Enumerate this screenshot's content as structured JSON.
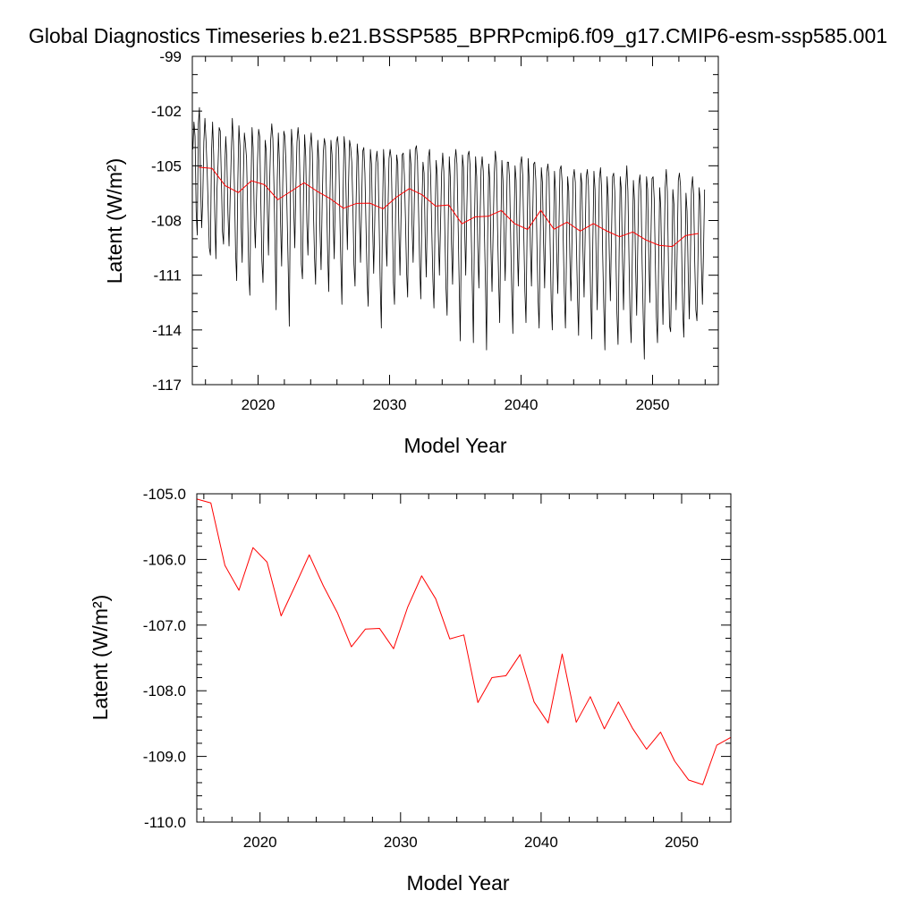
{
  "figure": {
    "title": "Global Diagnostics Timeseries b.e21.BSSP585_BPRPcmip6.f09_g17.CMIP6-esm-ssp585.001"
  },
  "colors": {
    "monthly_line": "#000000",
    "annual_line": "#ff0000",
    "axes": "#000000"
  },
  "chart_data": [
    {
      "type": "line",
      "xlabel": "Model Year",
      "ylabel": "Latent (W/m²)",
      "xlim": [
        2015,
        2055
      ],
      "ylim": [
        -117,
        -99
      ],
      "xticks": [
        2020,
        2030,
        2040,
        2050
      ],
      "yticks": [
        -99,
        -102,
        -105,
        -108,
        -111,
        -114,
        -117
      ],
      "yticks_text": [
        "-99",
        "-102",
        "-105",
        "-108",
        "-111",
        "-114",
        "-117"
      ],
      "grid": false,
      "series": [
        {
          "style": "monthly",
          "color": "#000000",
          "start_year": 2015,
          "values_per_year": 12,
          "values": [
            -104.1,
            -102.6,
            -103.4,
            -107.5,
            -108.8,
            -102.7,
            -101.8,
            -105.8,
            -108.4,
            -106.9,
            -103.7,
            -102.4,
            -103.6,
            -105.2,
            -107.3,
            -109.5,
            -109.9,
            -104.3,
            -102.6,
            -104.4,
            -107.8,
            -110.1,
            -106.3,
            -104.9,
            -102.9,
            -103.1,
            -105.7,
            -108.6,
            -109.3,
            -105.4,
            -103.4,
            -104.6,
            -107.6,
            -109.4,
            -106.8,
            -104.4,
            -102.4,
            -103.7,
            -106.4,
            -109.8,
            -111.3,
            -105.9,
            -102.8,
            -103.9,
            -108.2,
            -110.3,
            -105.8,
            -103.2,
            -103.8,
            -104.6,
            -107.5,
            -110.9,
            -112.1,
            -106.2,
            -102.9,
            -104.0,
            -107.8,
            -109.5,
            -107.0,
            -104.7,
            -103.0,
            -103.4,
            -106.9,
            -110.2,
            -111.4,
            -107.3,
            -103.6,
            -104.2,
            -107.5,
            -109.9,
            -106.1,
            -103.6,
            -102.7,
            -103.5,
            -106.1,
            -109.3,
            -112.9,
            -105.8,
            -103.2,
            -104.8,
            -108.1,
            -110.5,
            -106.0,
            -103.1,
            -103.4,
            -104.9,
            -107.7,
            -110.6,
            -113.8,
            -106.6,
            -103.0,
            -104.0,
            -107.3,
            -109.5,
            -106.2,
            -103.7,
            -102.9,
            -103.7,
            -106.7,
            -110.4,
            -111.2,
            -106.4,
            -103.3,
            -104.5,
            -108.1,
            -109.9,
            -106.8,
            -104.0,
            -103.2,
            -104.3,
            -107.4,
            -110.0,
            -111.5,
            -106.6,
            -103.6,
            -104.8,
            -108.5,
            -110.7,
            -107.1,
            -104.3,
            -103.5,
            -103.9,
            -106.8,
            -109.8,
            -111.9,
            -107.0,
            -103.6,
            -104.4,
            -107.9,
            -110.1,
            -106.6,
            -103.7,
            -103.4,
            -104.1,
            -107.4,
            -110.3,
            -112.6,
            -106.8,
            -103.4,
            -104.1,
            -107.1,
            -109.6,
            -106.1,
            -103.6,
            -104.0,
            -104.8,
            -107.1,
            -110.4,
            -111.6,
            -106.9,
            -103.8,
            -104.6,
            -108.0,
            -110.3,
            -107.0,
            -104.2,
            -104.0,
            -105.4,
            -108.3,
            -111.2,
            -112.7,
            -108.0,
            -104.1,
            -104.9,
            -108.2,
            -110.9,
            -108.0,
            -104.8,
            -104.2,
            -105.0,
            -108.2,
            -111.6,
            -113.9,
            -107.8,
            -104.1,
            -105.2,
            -108.6,
            -110.5,
            -107.6,
            -104.6,
            -104.1,
            -104.6,
            -107.7,
            -111.4,
            -112.6,
            -107.6,
            -104.4,
            -104.9,
            -108.5,
            -111.0,
            -107.7,
            -104.4,
            -104.3,
            -105.5,
            -107.9,
            -110.8,
            -112.2,
            -107.3,
            -104.1,
            -104.9,
            -108.2,
            -110.3,
            -107.3,
            -104.1,
            -103.9,
            -104.7,
            -107.6,
            -110.5,
            -112.3,
            -107.3,
            -104.8,
            -105.4,
            -108.9,
            -111.1,
            -107.5,
            -104.5,
            -104.1,
            -105.6,
            -108.5,
            -111.2,
            -112.8,
            -108.1,
            -104.7,
            -105.5,
            -108.8,
            -111.0,
            -108.3,
            -105.4,
            -104.3,
            -105.3,
            -108.8,
            -111.7,
            -113.2,
            -108.2,
            -104.5,
            -105.7,
            -109.3,
            -111.5,
            -107.9,
            -104.8,
            -104.1,
            -104.9,
            -108.0,
            -111.4,
            -114.6,
            -108.8,
            -104.4,
            -105.1,
            -108.4,
            -111.0,
            -107.4,
            -104.4,
            -104.2,
            -105.0,
            -108.6,
            -111.6,
            -114.7,
            -108.1,
            -104.5,
            -105.6,
            -109.4,
            -111.7,
            -108.2,
            -105.2,
            -104.5,
            -105.3,
            -108.5,
            -111.4,
            -115.1,
            -108.9,
            -104.9,
            -105.8,
            -109.5,
            -111.9,
            -108.7,
            -105.5,
            -104.2,
            -104.8,
            -108.3,
            -111.2,
            -113.6,
            -108.6,
            -104.7,
            -105.8,
            -109.0,
            -111.3,
            -108.2,
            -104.8,
            -104.8,
            -105.7,
            -108.9,
            -111.9,
            -114.2,
            -108.9,
            -105.0,
            -105.8,
            -109.3,
            -111.6,
            -108.4,
            -104.9,
            -104.5,
            -105.5,
            -108.8,
            -111.9,
            -113.6,
            -108.7,
            -104.6,
            -105.9,
            -109.4,
            -111.6,
            -108.2,
            -104.9,
            -104.8,
            -105.8,
            -109.3,
            -112.3,
            -113.9,
            -109.2,
            -105.1,
            -105.9,
            -109.2,
            -111.7,
            -108.4,
            -105.3,
            -104.9,
            -105.6,
            -109.2,
            -112.4,
            -114.0,
            -109.3,
            -105.3,
            -106.4,
            -109.7,
            -112.0,
            -108.6,
            -105.2,
            -105.0,
            -105.9,
            -109.1,
            -112.0,
            -113.9,
            -109.7,
            -105.6,
            -106.4,
            -109.9,
            -112.4,
            -109.0,
            -105.7,
            -105.2,
            -105.9,
            -109.3,
            -112.2,
            -114.3,
            -109.4,
            -105.4,
            -106.0,
            -109.7,
            -112.2,
            -108.8,
            -105.6,
            -105.2,
            -106.1,
            -109.0,
            -112.1,
            -114.5,
            -109.1,
            -105.3,
            -106.3,
            -110.0,
            -112.9,
            -109.3,
            -105.7,
            -105.1,
            -106.2,
            -109.9,
            -112.8,
            -115.1,
            -109.8,
            -105.6,
            -106.7,
            -109.8,
            -112.4,
            -108.9,
            -105.6,
            -105.4,
            -106.4,
            -109.8,
            -113.1,
            -114.8,
            -109.7,
            -105.6,
            -106.3,
            -110.0,
            -112.9,
            -109.6,
            -106.2,
            -105.0,
            -106.4,
            -110.1,
            -113.3,
            -114.7,
            -110.1,
            -105.8,
            -106.9,
            -110.4,
            -113.2,
            -109.4,
            -106.0,
            -105.5,
            -106.6,
            -110.4,
            -113.4,
            -115.6,
            -110.2,
            -105.6,
            -106.3,
            -109.8,
            -112.5,
            -109.0,
            -105.7,
            -105.6,
            -106.8,
            -110.2,
            -113.3,
            -114.7,
            -110.5,
            -106.2,
            -107.3,
            -110.9,
            -113.7,
            -109.8,
            -106.2,
            -105.2,
            -106.4,
            -110.4,
            -113.8,
            -114.1,
            -110.6,
            -106.3,
            -107.1,
            -110.4,
            -112.9,
            -109.5,
            -105.8,
            -105.4,
            -106.1,
            -109.5,
            -112.9,
            -114.4,
            -110.7,
            -106.5,
            -107.5,
            -110.8,
            -113.4,
            -110.2,
            -106.3,
            -105.6,
            -106.6,
            -110.3,
            -112.9,
            -113.5,
            -109.9,
            -106.2,
            -106.9,
            -110.3,
            -112.6,
            -109.7,
            -106.3
          ]
        },
        {
          "style": "annual",
          "color": "#ff0000",
          "x": [
            2015.5,
            2016.5,
            2017.5,
            2018.5,
            2019.5,
            2020.5,
            2021.5,
            2022.5,
            2023.5,
            2024.5,
            2025.5,
            2026.5,
            2027.5,
            2028.5,
            2029.5,
            2030.5,
            2031.5,
            2032.5,
            2033.5,
            2034.5,
            2035.5,
            2036.5,
            2037.5,
            2038.5,
            2039.5,
            2040.5,
            2041.5,
            2042.5,
            2043.5,
            2044.5,
            2045.5,
            2046.5,
            2047.5,
            2048.5,
            2049.5,
            2050.5,
            2051.5,
            2052.5,
            2053.5
          ],
          "values": [
            -105.08,
            -105.14,
            -106.09,
            -106.47,
            -105.82,
            -106.04,
            -106.86,
            -106.4,
            -105.93,
            -106.4,
            -106.81,
            -107.33,
            -107.06,
            -107.05,
            -107.36,
            -106.73,
            -106.25,
            -106.6,
            -107.21,
            -107.15,
            -108.18,
            -107.8,
            -107.77,
            -107.45,
            -108.17,
            -108.49,
            -107.44,
            -108.48,
            -108.09,
            -108.58,
            -108.17,
            -108.57,
            -108.89,
            -108.63,
            -109.07,
            -109.36,
            -109.43,
            -108.83,
            -108.71
          ]
        }
      ]
    },
    {
      "type": "line",
      "xlabel": "Model Year",
      "ylabel": "Latent (W/m²)",
      "xlim": [
        2015.5,
        2053.5
      ],
      "ylim": [
        -110,
        -105
      ],
      "xticks": [
        2020,
        2030,
        2040,
        2050
      ],
      "yticks": [
        -105,
        -106,
        -107,
        -108,
        -109,
        -110
      ],
      "yticks_text": [
        "-105.0",
        "-106.0",
        "-107.0",
        "-108.0",
        "-109.0",
        "-110.0"
      ],
      "grid": false,
      "series": [
        {
          "style": "annual",
          "color": "#ff0000",
          "x": [
            2015.5,
            2016.5,
            2017.5,
            2018.5,
            2019.5,
            2020.5,
            2021.5,
            2022.5,
            2023.5,
            2024.5,
            2025.5,
            2026.5,
            2027.5,
            2028.5,
            2029.5,
            2030.5,
            2031.5,
            2032.5,
            2033.5,
            2034.5,
            2035.5,
            2036.5,
            2037.5,
            2038.5,
            2039.5,
            2040.5,
            2041.5,
            2042.5,
            2043.5,
            2044.5,
            2045.5,
            2046.5,
            2047.5,
            2048.5,
            2049.5,
            2050.5,
            2051.5,
            2052.5,
            2053.5
          ],
          "values": [
            -105.08,
            -105.14,
            -106.09,
            -106.47,
            -105.82,
            -106.04,
            -106.86,
            -106.4,
            -105.93,
            -106.4,
            -106.81,
            -107.33,
            -107.06,
            -107.05,
            -107.36,
            -106.73,
            -106.25,
            -106.6,
            -107.21,
            -107.15,
            -108.18,
            -107.8,
            -107.77,
            -107.45,
            -108.17,
            -108.49,
            -107.44,
            -108.48,
            -108.09,
            -108.58,
            -108.17,
            -108.57,
            -108.89,
            -108.63,
            -109.07,
            -109.36,
            -109.43,
            -108.83,
            -108.71
          ]
        }
      ]
    }
  ]
}
